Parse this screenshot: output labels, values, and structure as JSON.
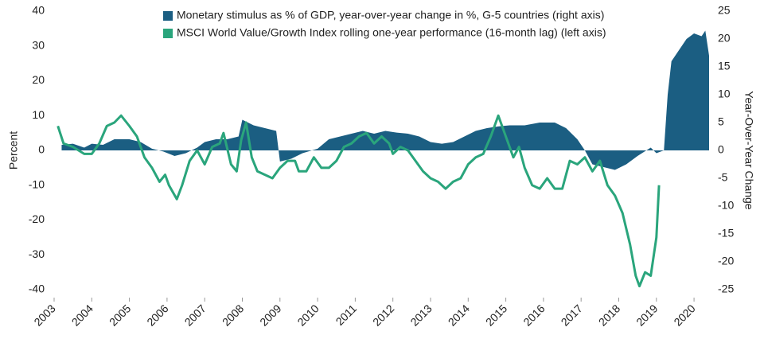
{
  "chart_data": {
    "type": "combo",
    "ylabel": "Percent",
    "y2label": "Year-Over-Year Change",
    "xlim": [
      2003,
      2020.4
    ],
    "xticks": [
      2003,
      2004,
      2005,
      2006,
      2007,
      2008,
      2009,
      2010,
      2011,
      2012,
      2013,
      2014,
      2015,
      2016,
      2017,
      2018,
      2019,
      2020
    ],
    "ylim": [
      -40,
      40
    ],
    "yticks": [
      -40,
      -30,
      -20,
      -10,
      0,
      10,
      20,
      30,
      40
    ],
    "y2lim": [
      -25,
      25
    ],
    "y2ticks": [
      -25,
      -20,
      -15,
      -10,
      -5,
      0,
      5,
      10,
      15,
      20,
      25
    ],
    "series": [
      {
        "name": "Monetary stimulus as % of GDP, year-over-year change in %, G-5 countries (right axis)",
        "type": "area",
        "axis": "y2",
        "color": "#1b5e82",
        "x": [
          2003.2,
          2003.5,
          2003.8,
          2004.0,
          2004.3,
          2004.6,
          2005.0,
          2005.3,
          2005.6,
          2005.9,
          2006.2,
          2006.5,
          2006.8,
          2007.0,
          2007.3,
          2007.6,
          2007.9,
          2008.0,
          2008.3,
          2008.6,
          2008.9,
          2009.0,
          2009.3,
          2009.6,
          2010.0,
          2010.3,
          2010.6,
          2010.9,
          2011.2,
          2011.5,
          2011.8,
          2012.1,
          2012.4,
          2012.7,
          2013.0,
          2013.3,
          2013.6,
          2013.9,
          2014.2,
          2014.5,
          2014.8,
          2015.1,
          2015.5,
          2015.9,
          2016.3,
          2016.6,
          2016.9,
          2017.1,
          2017.3,
          2017.6,
          2017.9,
          2018.2,
          2018.5,
          2018.85,
          2019.0,
          2019.2,
          2019.3,
          2019.4,
          2019.6,
          2019.8,
          2020.0,
          2020.2,
          2020.3,
          2020.4
        ],
        "values": [
          1,
          1.2,
          0.5,
          1.2,
          1.0,
          2.0,
          2.0,
          1.5,
          0.3,
          -0.2,
          -1.0,
          -0.5,
          0.5,
          1.5,
          2.0,
          2.0,
          2.5,
          5.5,
          4.5,
          4.0,
          3.5,
          -2.0,
          -1.5,
          -0.5,
          0.3,
          2.0,
          2.5,
          3.0,
          3.5,
          3.0,
          3.5,
          3.2,
          3.0,
          2.5,
          1.5,
          1.2,
          1.5,
          2.5,
          3.5,
          4.0,
          4.3,
          4.5,
          4.5,
          5.0,
          5.0,
          4.0,
          2.0,
          0,
          -2.5,
          -3.0,
          -3.5,
          -2.5,
          -1.0,
          0.5,
          -0.5,
          0,
          10,
          16,
          18,
          20,
          21,
          20.5,
          21.5,
          17
        ]
      },
      {
        "name": "MSCI World Value/Growth Index rolling one-year performance (16-month lag) (left axis)",
        "type": "line",
        "axis": "y",
        "color": "#2aa57c",
        "x": [
          2003.1,
          2003.25,
          2003.5,
          2003.8,
          2004.0,
          2004.2,
          2004.4,
          2004.6,
          2004.78,
          2005.0,
          2005.2,
          2005.4,
          2005.6,
          2005.8,
          2005.95,
          2006.05,
          2006.26,
          2006.4,
          2006.6,
          2006.8,
          2007.0,
          2007.2,
          2007.4,
          2007.5,
          2007.7,
          2007.85,
          2007.97,
          2008.1,
          2008.25,
          2008.4,
          2008.6,
          2008.8,
          2009.0,
          2009.2,
          2009.4,
          2009.5,
          2009.7,
          2009.9,
          2010.1,
          2010.3,
          2010.5,
          2010.7,
          2010.9,
          2011.1,
          2011.3,
          2011.5,
          2011.7,
          2011.9,
          2012.0,
          2012.2,
          2012.4,
          2012.6,
          2012.8,
          2013.0,
          2013.2,
          2013.4,
          2013.6,
          2013.8,
          2014.0,
          2014.2,
          2014.4,
          2014.6,
          2014.8,
          2015.0,
          2015.2,
          2015.35,
          2015.5,
          2015.7,
          2015.9,
          2016.1,
          2016.3,
          2016.5,
          2016.7,
          2016.9,
          2017.1,
          2017.3,
          2017.5,
          2017.7,
          2017.9,
          2018.1,
          2018.3,
          2018.45,
          2018.55,
          2018.7,
          2018.85,
          2019.0,
          2019.07
        ],
        "values": [
          7,
          2,
          1,
          -1,
          -1,
          2,
          7,
          8,
          10,
          7,
          4,
          -2,
          -5,
          -9,
          -7,
          -10,
          -14,
          -10,
          -3,
          0,
          -4,
          1,
          2,
          5,
          -4,
          -6,
          3,
          8,
          -2,
          -6,
          -7,
          -8,
          -5,
          -3,
          -3,
          -6,
          -6,
          -2,
          -5,
          -5,
          -3,
          1,
          2,
          4,
          5,
          2,
          4,
          2,
          -1,
          1,
          0,
          -3,
          -6,
          -8,
          -9,
          -11,
          -9,
          -8,
          -4,
          -2,
          -1,
          4,
          10,
          4,
          -2,
          1,
          -5,
          -10,
          -11,
          -8,
          -11,
          -11,
          -3,
          -4,
          -2,
          -6,
          -3,
          -10,
          -13,
          -18,
          -27,
          -36,
          -39,
          -35,
          -36,
          -25,
          -10
        ]
      }
    ]
  }
}
